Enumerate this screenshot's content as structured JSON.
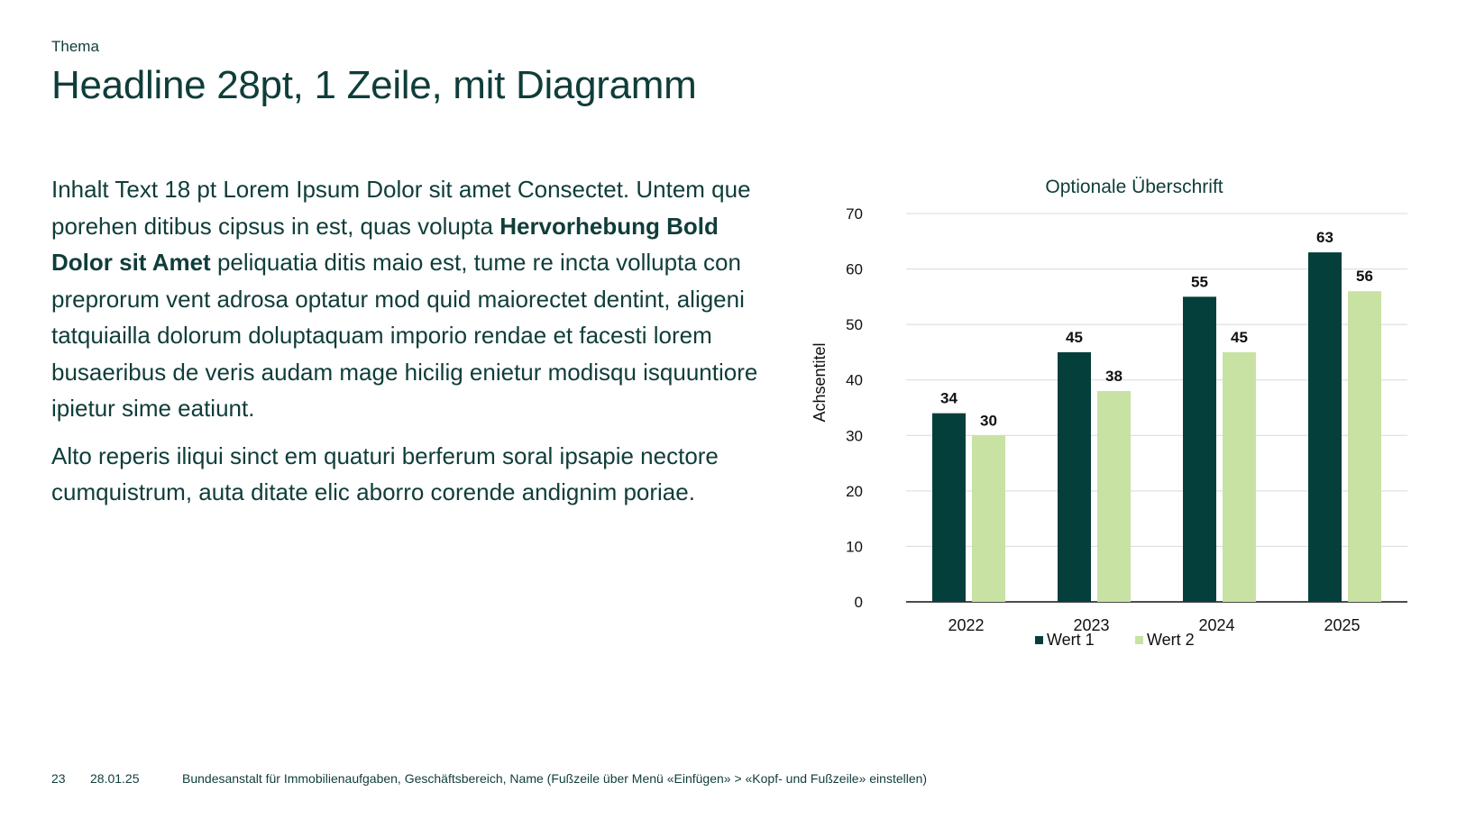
{
  "topic": "Thema",
  "headline": "Headline 28pt, 1 Zeile, mit Diagramm",
  "body": {
    "p1_part1": "Inhalt Text 18 pt Lorem Ipsum Dolor sit amet Consectet. Untem que porehen ditibus cipsus in est, quas volupta ",
    "p1_bold": "Hervorhebung Bold Dolor sit Amet",
    "p1_part2": " peliquatia ditis maio est, tume re incta vollupta con preprorum vent adrosa optatur mod quid maiorectet dentint, aligeni tatquiailla dolorum doluptaquam imporio rendae et facesti lorem busaeribus de veris audam mage hicilig enietur modisqu isquuntiore ipietur sime eatiunt.",
    "p2": "Alto reperis iliqui sinct em quaturi berferum soral ipsapie nectore cumquistrum, auta ditate elic aborro corende andignim poriae."
  },
  "chart_data": {
    "type": "bar",
    "title": "Optionale Überschrift",
    "ylabel": "Achsentitel",
    "xlabel": "",
    "categories": [
      "2022",
      "2023",
      "2024",
      "2025"
    ],
    "series": [
      {
        "name": "Wert 1",
        "values": [
          34,
          45,
          55,
          63
        ],
        "color": "#043f3c"
      },
      {
        "name": "Wert 2",
        "values": [
          30,
          38,
          45,
          56
        ],
        "color": "#c8e2a4"
      }
    ],
    "ylim": [
      0,
      70
    ],
    "yticks": [
      0,
      10,
      20,
      30,
      40,
      50,
      60,
      70
    ],
    "grid": true,
    "legend": "bottom",
    "data_labels": true
  },
  "footer": {
    "page": "23",
    "date": "28.01.25",
    "text": "Bundesanstalt für Immobilienaufgaben, Geschäftsbereich, Name (Fußzeile über Menü «Einfügen» > «Kopf- und Fußzeile» einstellen)"
  }
}
